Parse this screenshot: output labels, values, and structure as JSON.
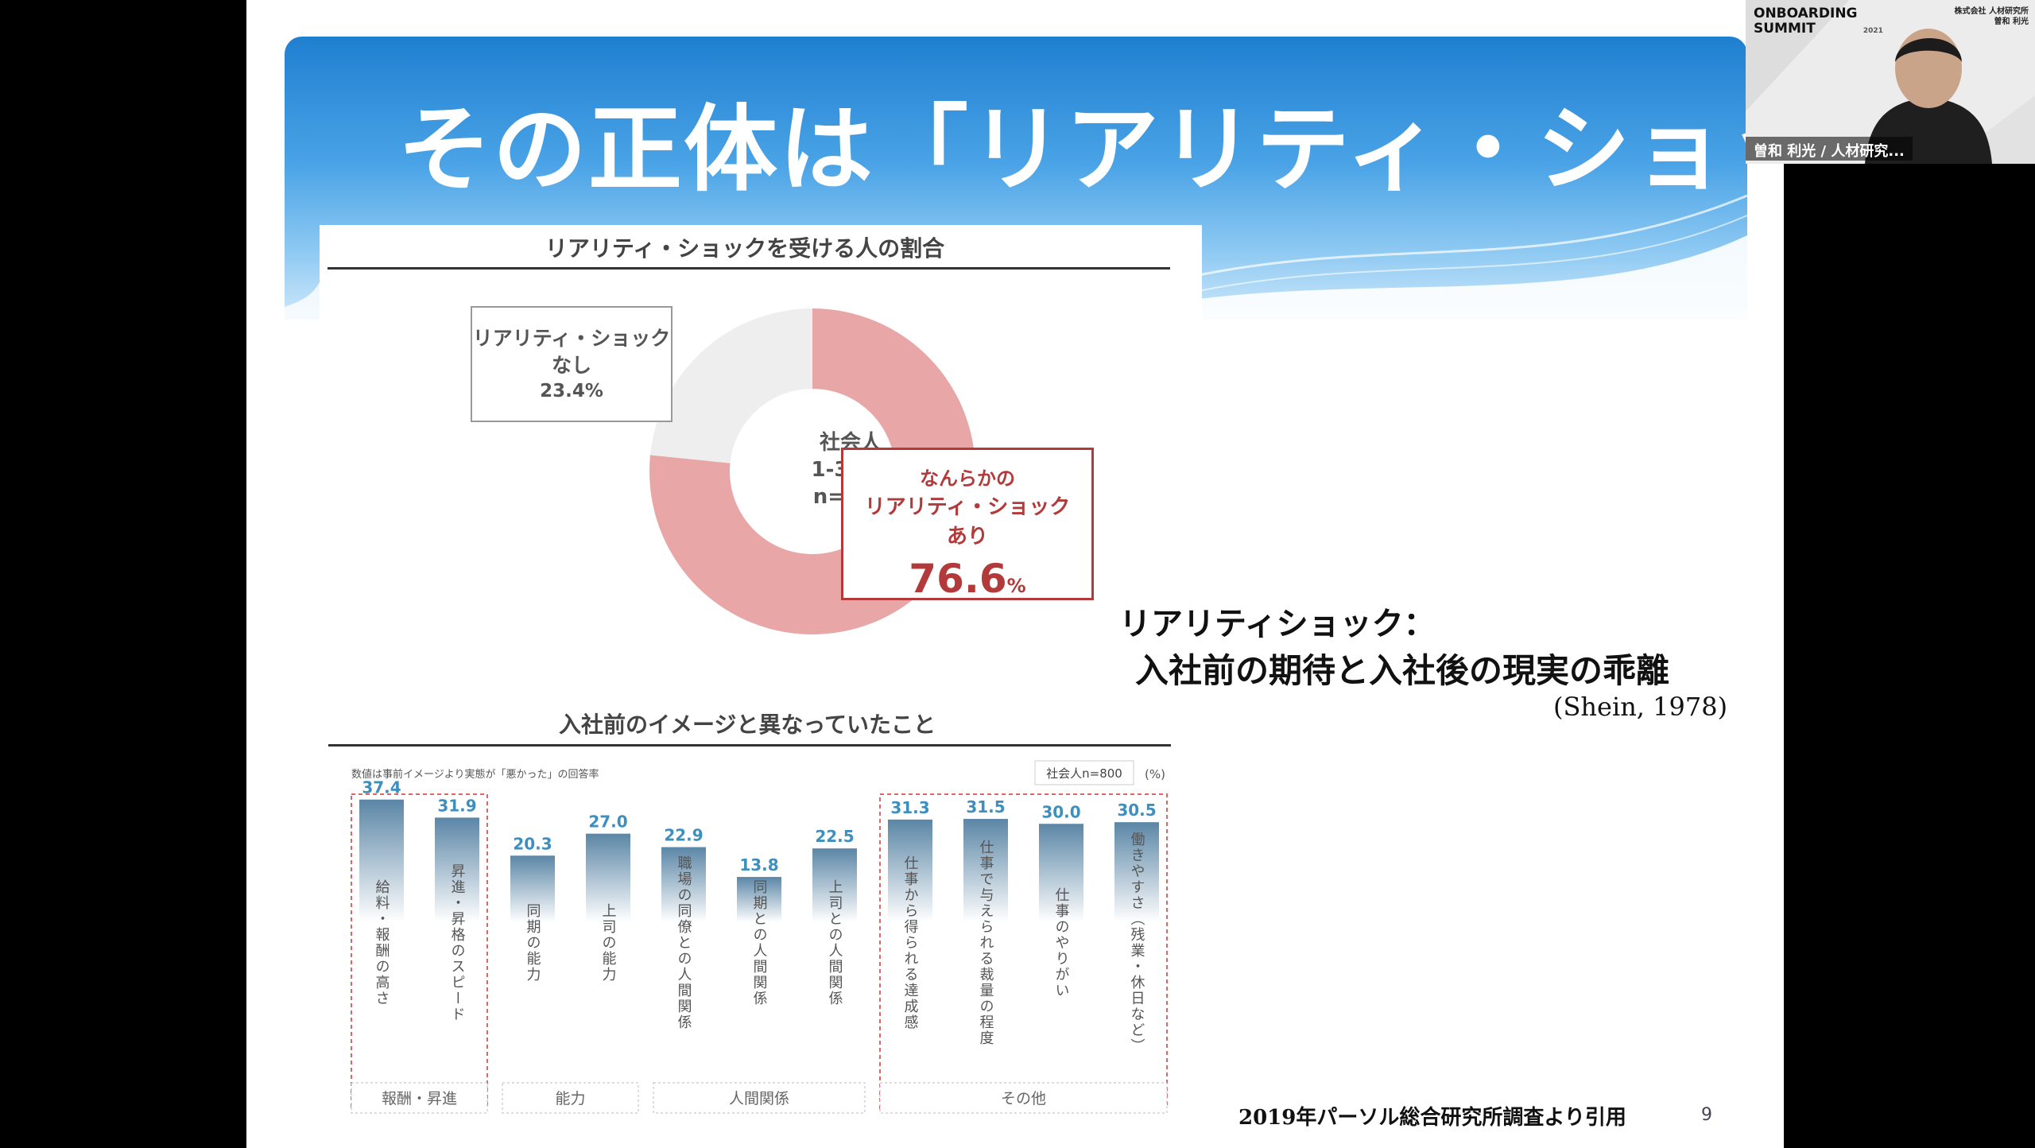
{
  "slide": {
    "title": "その正体は「リアリティ・ショック」",
    "page_number": "9",
    "citation": "2019年パーソル総合研究所調査より引用"
  },
  "donut": {
    "heading": "リアリティ・ショックを受ける人の割合",
    "center": [
      "社会人",
      "1-3年目",
      "n=800"
    ],
    "no_label_1": "リアリティ・ショック",
    "no_label_2": "なし",
    "no_pct": "23.4%",
    "yes_label_1": "なんらかの",
    "yes_label_2": "リアリティ・ショック",
    "yes_label_3": "あり",
    "yes_value": "76.6",
    "yes_unit": "%",
    "yes_color": "#e8a6a6",
    "no_color": "#eeeeee"
  },
  "definition": {
    "term": "リアリティショック：",
    "meaning": "入社前の期待と入社後の現実の乖離",
    "source": "(Shein, 1978)"
  },
  "chart_data": {
    "type": "bar",
    "title": "入社前のイメージと異なっていたこと",
    "subtitle": "数値は事前イメージより実態が「悪かった」の回答率",
    "sample": "社会人n=800",
    "unit": "(%)",
    "categories": [
      "給料・報酬の高さ",
      "昇進・昇格のスピード",
      "同期の能力",
      "上司の能力",
      "職場の同僚との人間関係",
      "同期との人間関係",
      "上司との人間関係",
      "仕事から得られる達成感",
      "仕事で与えられる裁量の程度",
      "仕事のやりがい",
      "働きやすさ（残業・休日など）"
    ],
    "values": [
      37.4,
      31.9,
      20.3,
      27.0,
      22.9,
      13.8,
      22.5,
      31.3,
      31.5,
      30.0,
      30.5
    ],
    "value_labels": [
      "37.4",
      "31.9",
      "20.3",
      "27.0",
      "22.9",
      "13.8",
      "22.5",
      "31.3",
      "31.5",
      "30.0",
      "30.5"
    ],
    "groups": [
      {
        "label": "報酬・昇進",
        "highlight": true
      },
      {
        "label": "能力",
        "highlight": false
      },
      {
        "label": "人間関係",
        "highlight": false
      },
      {
        "label": "その他",
        "highlight": true
      }
    ],
    "ylim": [
      0,
      40
    ],
    "bar_color": "#5b86a6",
    "value_color": "#3d8fbf",
    "highlight_color": "#e06666"
  },
  "video": {
    "event_line1": "ONBOARDING",
    "event_line2": "SUMMIT",
    "event_year": "2021",
    "company": "株式会社 人材研究所",
    "speaker_small": "曽和 利光",
    "name_bar": "曽和 利光 / 人材研究..."
  }
}
